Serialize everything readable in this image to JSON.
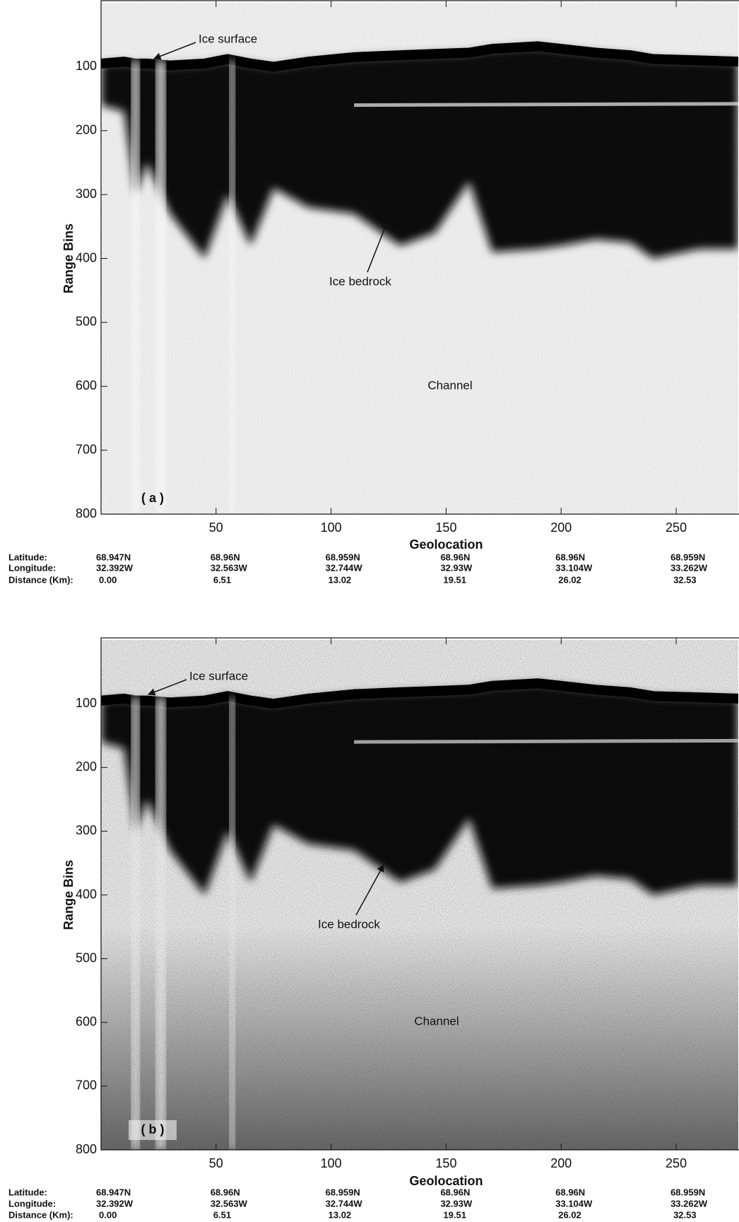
{
  "chart_data": [
    {
      "type": "radargram",
      "panel_label": "( a )",
      "xlabel": "Geolocation",
      "ylabel": "Range Bins",
      "xlim": [
        0,
        277
      ],
      "xticks": [
        50,
        100,
        150,
        200,
        250
      ],
      "ylim": [
        0,
        800
      ],
      "y_inverted": true,
      "yticks": [
        100,
        200,
        300,
        400,
        500,
        600,
        700,
        800
      ],
      "annotations": [
        "Ice surface",
        "Ice bedrock",
        "Channel"
      ],
      "geo_row_labels": [
        "Latitude:",
        "Longitude:",
        "Distance (Km):"
      ],
      "geo_columns": [
        [
          "68.947N",
          "32.392W",
          "0.00"
        ],
        [
          "68.96N",
          "32.563W",
          "6.51"
        ],
        [
          "68.959N",
          "32.744W",
          "13.02"
        ],
        [
          "68.96N",
          "32.93W",
          "19.51"
        ],
        [
          "68.96N",
          "33.104W",
          "26.02"
        ],
        [
          "68.959N",
          "33.262W",
          "32.53"
        ]
      ]
    },
    {
      "type": "radargram",
      "panel_label": "( b )",
      "xlabel": "Geolocation",
      "ylabel": "Range Bins",
      "xlim": [
        0,
        277
      ],
      "xticks": [
        50,
        100,
        150,
        200,
        250
      ],
      "ylim": [
        0,
        800
      ],
      "y_inverted": true,
      "yticks": [
        100,
        200,
        300,
        400,
        500,
        600,
        700,
        800
      ],
      "annotations": [
        "Ice surface",
        "Ice bedrock",
        "Channel"
      ],
      "geo_row_labels": [
        "Latitude:",
        "Longitude:",
        "Distance (Km):"
      ],
      "geo_columns": [
        [
          "68.947N",
          "32.392W",
          "0.00"
        ],
        [
          "68.96N",
          "32.563W",
          "6.51"
        ],
        [
          "68.959N",
          "32.744W",
          "13.02"
        ],
        [
          "68.96N",
          "32.93W",
          "19.51"
        ],
        [
          "68.96N",
          "33.104W",
          "26.02"
        ],
        [
          "68.959N",
          "33.262W",
          "32.53"
        ]
      ]
    }
  ]
}
